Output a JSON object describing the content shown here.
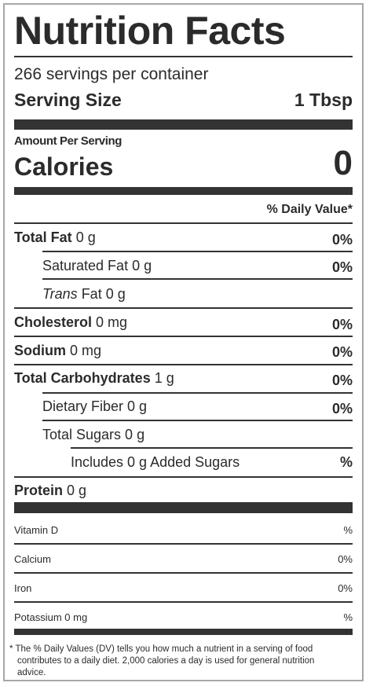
{
  "title": "Nutrition Facts",
  "servings_per_container": "266 servings per container",
  "serving_size": {
    "label": "Serving Size",
    "value": "1 Tbsp"
  },
  "amount_per_serving": "Amount Per Serving",
  "calories": {
    "label": "Calories",
    "value": "0"
  },
  "daily_value_header": "% Daily Value*",
  "nutrients": {
    "total_fat": {
      "label": "Total Fat",
      "amount": "0 g",
      "dv": "0%"
    },
    "saturated_fat": {
      "label": "Saturated Fat 0 g",
      "dv": "0%"
    },
    "trans_fat": {
      "label_italic": "Trans",
      "label_rest": " Fat 0 g"
    },
    "cholesterol": {
      "label": "Cholesterol",
      "amount": "0 mg",
      "dv": "0%"
    },
    "sodium": {
      "label": "Sodium",
      "amount": "0 mg",
      "dv": "0%"
    },
    "total_carbs": {
      "label": "Total Carbohydrates",
      "amount": "1 g",
      "dv": "0%"
    },
    "dietary_fiber": {
      "label": "Dietary Fiber 0 g",
      "dv": "0%"
    },
    "total_sugars": {
      "label": "Total Sugars 0 g"
    },
    "added_sugars": {
      "label": "Includes 0 g Added Sugars",
      "dv": "%"
    },
    "protein": {
      "label": "Protein",
      "amount": "0 g"
    }
  },
  "vitamins": [
    {
      "label": "Vitamin D",
      "dv": "%"
    },
    {
      "label": "Calcium",
      "dv": "0%"
    },
    {
      "label": "Iron",
      "dv": "0%"
    },
    {
      "label": "Potassium 0 mg",
      "dv": "%"
    }
  ],
  "footnote": {
    "line1": "* The % Daily Values (DV) tells you how much a nutrient in a serving of food",
    "line2": "contributes to a daily diet. 2,000 calories a day is used for general nutrition",
    "line3": "advice."
  }
}
